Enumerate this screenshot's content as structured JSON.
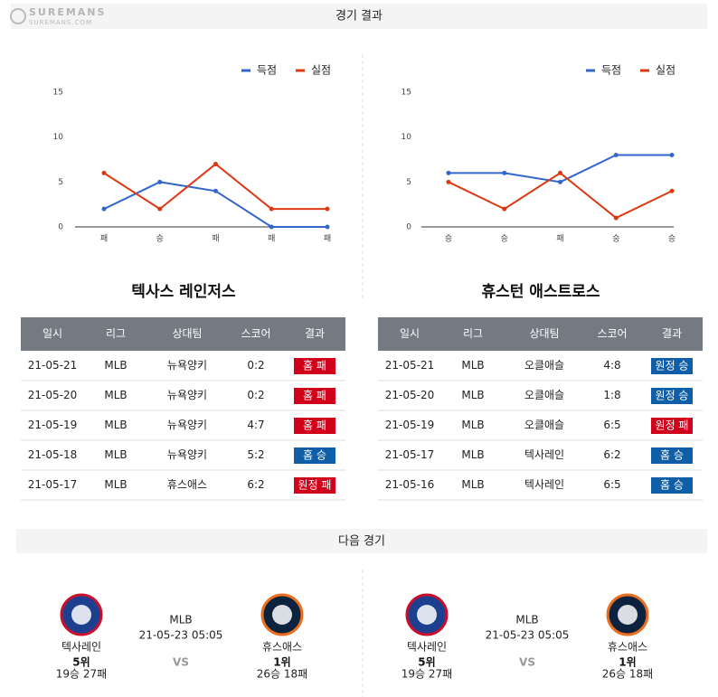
{
  "watermark": {
    "brand": "SUREMANS",
    "site": "SUREMANS.COM"
  },
  "results_title": "경기 결과",
  "chart_data": [
    {
      "type": "line",
      "categories": [
        "패",
        "승",
        "패",
        "패",
        "패"
      ],
      "ylim": [
        0,
        15
      ],
      "yticks": [
        0,
        5,
        10,
        15
      ],
      "legend": "top-right",
      "series": [
        {
          "name": "득점",
          "color": "#3366cc",
          "values": [
            2,
            5,
            4,
            0,
            0
          ]
        },
        {
          "name": "실점",
          "color": "#dc3912",
          "values": [
            6,
            2,
            7,
            2,
            2
          ]
        }
      ]
    },
    {
      "type": "line",
      "categories": [
        "승",
        "승",
        "패",
        "승",
        "승"
      ],
      "ylim": [
        0,
        15
      ],
      "yticks": [
        0,
        5,
        10,
        15
      ],
      "legend": "top-right",
      "series": [
        {
          "name": "득점",
          "color": "#3366cc",
          "values": [
            6,
            6,
            5,
            8,
            8
          ]
        },
        {
          "name": "실점",
          "color": "#dc3912",
          "values": [
            5,
            2,
            6,
            1,
            4
          ]
        }
      ]
    }
  ],
  "teams": [
    {
      "name": "텍사스 레인저스",
      "headers": [
        "일시",
        "리그",
        "상대팀",
        "스코어",
        "결과"
      ],
      "rows": [
        {
          "date": "21-05-21",
          "league": "MLB",
          "opponent": "뉴욕양키",
          "score": "0:2",
          "result": "홈 패",
          "color": "#d0021b"
        },
        {
          "date": "21-05-20",
          "league": "MLB",
          "opponent": "뉴욕양키",
          "score": "0:2",
          "result": "홈 패",
          "color": "#d0021b"
        },
        {
          "date": "21-05-19",
          "league": "MLB",
          "opponent": "뉴욕양키",
          "score": "4:7",
          "result": "홈 패",
          "color": "#d0021b"
        },
        {
          "date": "21-05-18",
          "league": "MLB",
          "opponent": "뉴욕양키",
          "score": "5:2",
          "result": "홈 승",
          "color": "#0f5fa8"
        },
        {
          "date": "21-05-17",
          "league": "MLB",
          "opponent": "휴스애스",
          "score": "6:2",
          "result": "원정 패",
          "color": "#d0021b"
        }
      ]
    },
    {
      "name": "휴스턴 애스트로스",
      "headers": [
        "일시",
        "리그",
        "상대팀",
        "스코어",
        "결과"
      ],
      "rows": [
        {
          "date": "21-05-21",
          "league": "MLB",
          "opponent": "오클애슬",
          "score": "4:8",
          "result": "원정 승",
          "color": "#0f5fa8"
        },
        {
          "date": "21-05-20",
          "league": "MLB",
          "opponent": "오클애슬",
          "score": "1:8",
          "result": "원정 승",
          "color": "#0f5fa8"
        },
        {
          "date": "21-05-19",
          "league": "MLB",
          "opponent": "오클애슬",
          "score": "6:5",
          "result": "원정 패",
          "color": "#d0021b"
        },
        {
          "date": "21-05-17",
          "league": "MLB",
          "opponent": "텍사레인",
          "score": "6:2",
          "result": "홈 승",
          "color": "#0f5fa8"
        },
        {
          "date": "21-05-16",
          "league": "MLB",
          "opponent": "텍사레인",
          "score": "6:5",
          "result": "홈 승",
          "color": "#0f5fa8"
        }
      ]
    }
  ],
  "next_title": "다음 경기",
  "next_games": [
    {
      "home": {
        "name": "텍사레인",
        "rank": "5위",
        "record": "19승 27패"
      },
      "league": "MLB",
      "time": "21-05-23 05:05",
      "vs": "VS",
      "away": {
        "name": "휴스애스",
        "rank": "1위",
        "record": "26승 18패"
      }
    },
    {
      "home": {
        "name": "텍사레인",
        "rank": "5위",
        "record": "19승 27패"
      },
      "league": "MLB",
      "time": "21-05-23 05:05",
      "vs": "VS",
      "away": {
        "name": "휴스애스",
        "rank": "1위",
        "record": "26승 18패"
      }
    }
  ]
}
